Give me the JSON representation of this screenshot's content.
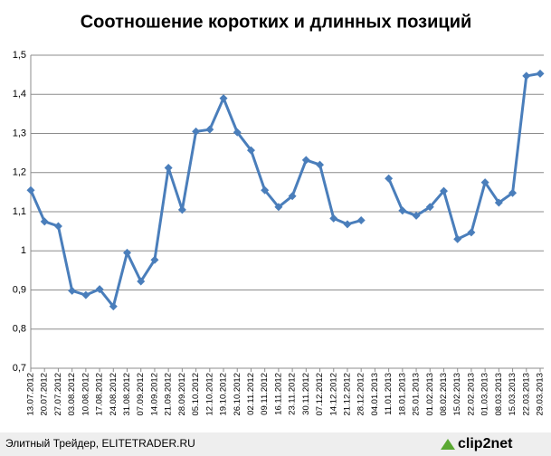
{
  "chart_data": {
    "type": "line",
    "title": "Соотношение коротких и длинных позиций",
    "categories": [
      "13.07.2012",
      "20.07.2012",
      "27.07.2012",
      "03.08.2012",
      "10.08.2012",
      "17.08.2012",
      "24.08.2012",
      "31.08.2012",
      "07.09.2012",
      "14.09.2012",
      "21.09.2012",
      "28.09.2012",
      "05.10.2012",
      "12.10.2012",
      "19.10.2012",
      "26.10.2012",
      "02.11.2012",
      "09.11.2012",
      "16.11.2012",
      "23.11.2012",
      "30.11.2012",
      "07.12.2012",
      "14.12.2012",
      "21.12.2012",
      "28.12.2012",
      "04.01.2013",
      "11.01.2013",
      "18.01.2013",
      "25.01.2013",
      "01.02.2013",
      "08.02.2013",
      "15.02.2013",
      "22.02.2013",
      "01.03.2013",
      "08.03.2013",
      "15.03.2013",
      "22.03.2013",
      "29.03.2013"
    ],
    "values": [
      1.155,
      1.075,
      1.063,
      0.898,
      0.887,
      0.902,
      0.858,
      0.995,
      0.922,
      0.977,
      1.212,
      1.105,
      1.305,
      1.31,
      1.39,
      1.303,
      1.257,
      1.155,
      1.112,
      1.14,
      1.232,
      1.22,
      1.083,
      1.068,
      1.078,
      null,
      1.185,
      1.103,
      1.09,
      1.112,
      1.153,
      1.03,
      1.047,
      1.175,
      1.123,
      1.148,
      1.447,
      1.453
    ],
    "color": "#4a7ebb",
    "ylim": [
      0.7,
      1.5
    ],
    "yticks": [
      {
        "value": 0.7,
        "label": "0,7"
      },
      {
        "value": 0.8,
        "label": "0,8"
      },
      {
        "value": 0.9,
        "label": "0,9"
      },
      1,
      {
        "value": 1.1,
        "label": "1,1"
      },
      {
        "value": 1.2,
        "label": "1,2"
      },
      {
        "value": 1.3,
        "label": "1,3"
      },
      {
        "value": 1.4,
        "label": "1,4"
      },
      {
        "value": 1.5,
        "label": "1,5"
      }
    ],
    "grid": true
  },
  "footer": {
    "source": "Элитный Трейдер, ELITETRADER.RU",
    "logo": "clip2net"
  }
}
